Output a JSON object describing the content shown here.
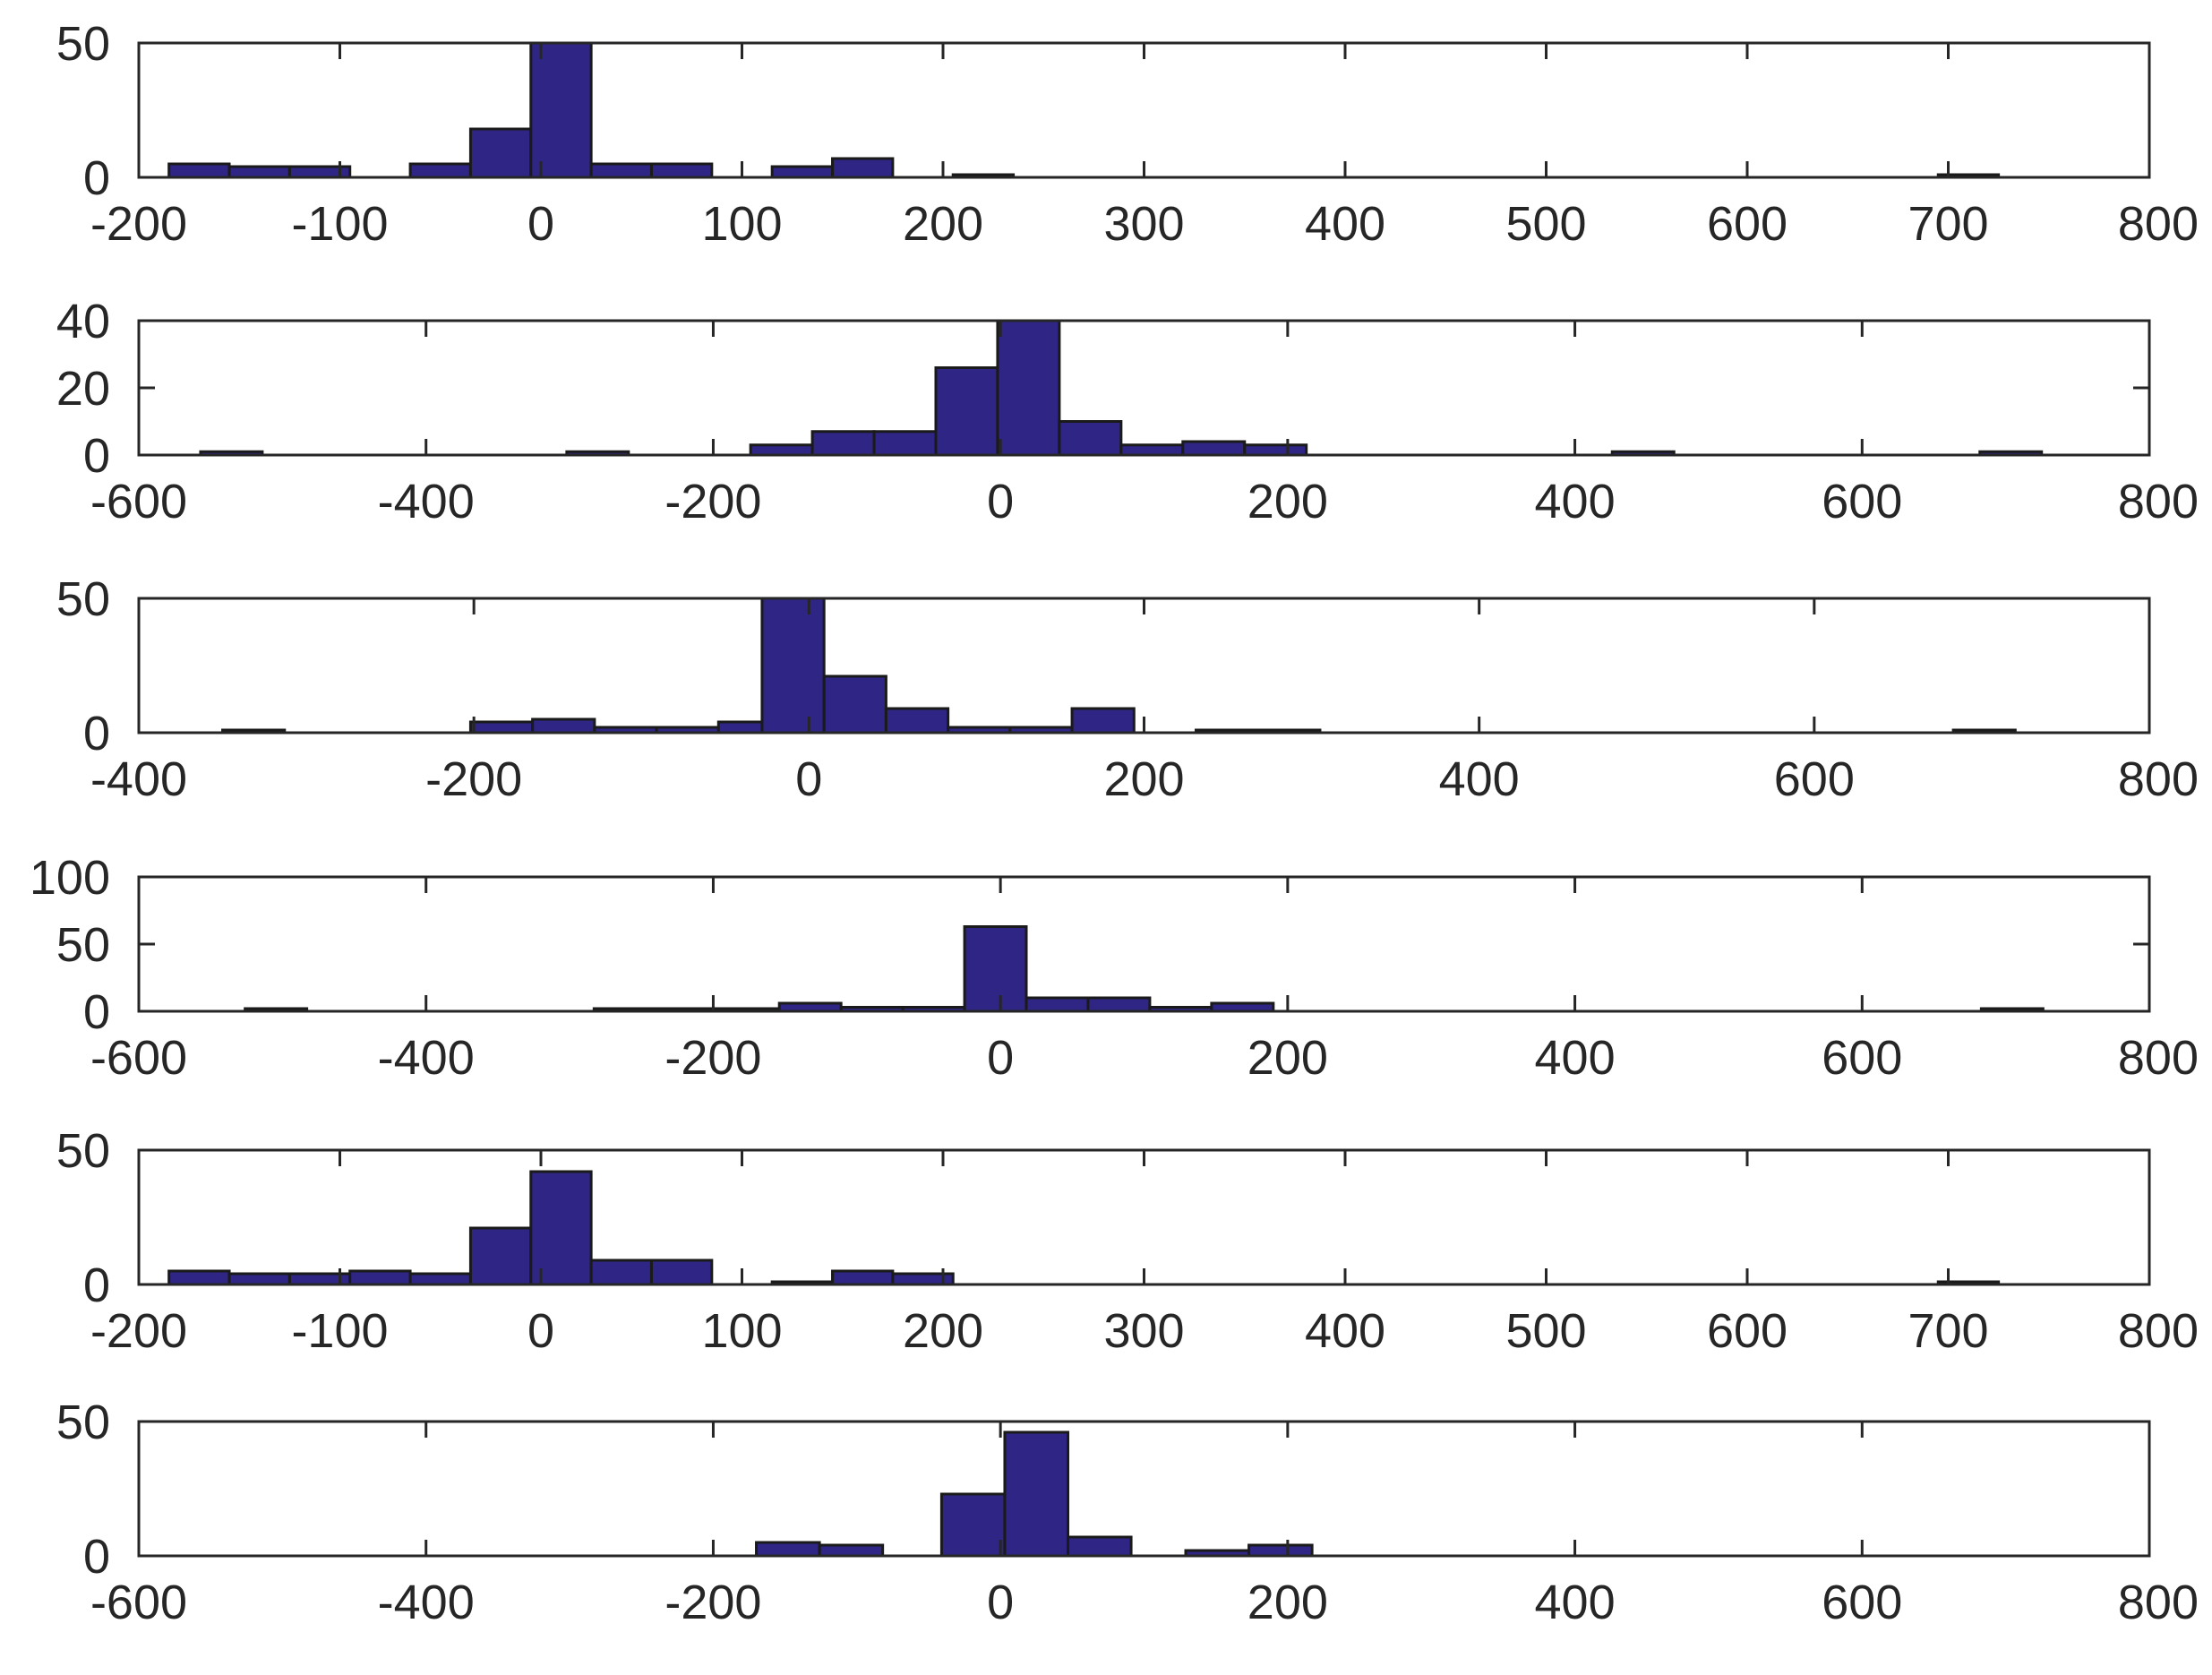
{
  "chart_data": [
    {
      "type": "bar",
      "xlim": [
        -200,
        800
      ],
      "ylim": [
        0,
        50
      ],
      "xticks": [
        -200,
        -100,
        0,
        100,
        200,
        300,
        400,
        500,
        600,
        700,
        800
      ],
      "yticks": [
        0,
        50
      ],
      "xtick_labels": [
        "-200",
        "-100",
        "0",
        "100",
        "200",
        "300",
        "400",
        "500",
        "600",
        "700",
        "800"
      ],
      "ytick_labels": [
        "0",
        "50"
      ],
      "bin_width": 30,
      "bin_starts": [
        -185,
        -155,
        -125,
        -65,
        -35,
        -5,
        25,
        55,
        115,
        145,
        205,
        695
      ],
      "counts": [
        5,
        4,
        4,
        5,
        18,
        50,
        5,
        5,
        4,
        7,
        1,
        1
      ],
      "grid": false,
      "bar_color": "#2e2585"
    },
    {
      "type": "bar",
      "xlim": [
        -600,
        800
      ],
      "ylim": [
        0,
        40
      ],
      "xticks": [
        -600,
        -400,
        -200,
        0,
        200,
        400,
        600,
        800
      ],
      "yticks": [
        0,
        20,
        40
      ],
      "xtick_labels": [
        "-600",
        "-400",
        "-200",
        "0",
        "200",
        "400",
        "600",
        "800"
      ],
      "ytick_labels": [
        "0",
        "20",
        "40"
      ],
      "bin_width": 43,
      "bin_starts": [
        -557,
        -302,
        -174,
        -131,
        -88,
        -45,
        -2,
        41,
        84,
        127,
        170,
        426,
        682
      ],
      "counts": [
        1,
        1,
        3,
        7,
        7,
        26,
        40,
        10,
        3,
        4,
        3,
        1,
        1
      ],
      "grid": false,
      "bar_color": "#2e2585"
    },
    {
      "type": "bar",
      "xlim": [
        -400,
        800
      ],
      "ylim": [
        0,
        50
      ],
      "xticks": [
        -400,
        -200,
        0,
        200,
        400,
        600,
        800
      ],
      "yticks": [
        0,
        50
      ],
      "xtick_labels": [
        "-400",
        "-200",
        "0",
        "200",
        "400",
        "600",
        "800"
      ],
      "ytick_labels": [
        "0",
        "50"
      ],
      "bin_width": 37,
      "bin_starts": [
        -350,
        -202,
        -165,
        -128,
        -91,
        -54,
        -28,
        9,
        46,
        83,
        120,
        157,
        231,
        268,
        683
      ],
      "counts": [
        1,
        4,
        5,
        2,
        2,
        4,
        50,
        21,
        9,
        2,
        2,
        9,
        1,
        1,
        1
      ],
      "grid": false,
      "bar_color": "#2e2585"
    },
    {
      "type": "bar",
      "xlim": [
        -600,
        800
      ],
      "ylim": [
        0,
        100
      ],
      "xticks": [
        -600,
        -400,
        -200,
        0,
        200,
        400,
        600,
        800
      ],
      "yticks": [
        0,
        50,
        100
      ],
      "xtick_labels": [
        "-600",
        "-400",
        "-200",
        "0",
        "200",
        "400",
        "600",
        "800"
      ],
      "ytick_labels": [
        "0",
        "50",
        "100"
      ],
      "bin_width": 43,
      "bin_starts": [
        -526,
        -283,
        -240,
        -197,
        -154,
        -111,
        -68,
        -25,
        18,
        61,
        104,
        147,
        683
      ],
      "counts": [
        2,
        2,
        2,
        2,
        6,
        3,
        3,
        63,
        10,
        10,
        3,
        6,
        2
      ],
      "grid": false,
      "bar_color": "#2e2585"
    },
    {
      "type": "bar",
      "xlim": [
        -200,
        800
      ],
      "ylim": [
        0,
        50
      ],
      "xticks": [
        -200,
        -100,
        0,
        100,
        200,
        300,
        400,
        500,
        600,
        700,
        800
      ],
      "yticks": [
        0,
        50
      ],
      "xtick_labels": [
        "-200",
        "-100",
        "0",
        "100",
        "200",
        "300",
        "400",
        "500",
        "600",
        "700",
        "800"
      ],
      "ytick_labels": [
        "0",
        "50"
      ],
      "bin_width": 30,
      "bin_starts": [
        -185,
        -155,
        -125,
        -95,
        -65,
        -35,
        -5,
        25,
        55,
        115,
        145,
        175,
        695
      ],
      "counts": [
        5,
        4,
        4,
        5,
        4,
        21,
        42,
        9,
        9,
        1,
        5,
        4,
        1
      ],
      "grid": false,
      "bar_color": "#2e2585"
    },
    {
      "type": "bar",
      "xlim": [
        -600,
        800
      ],
      "ylim": [
        0,
        50
      ],
      "xticks": [
        -600,
        -400,
        -200,
        0,
        200,
        400,
        600,
        800
      ],
      "yticks": [
        0,
        50
      ],
      "xtick_labels": [
        "-600",
        "-400",
        "-200",
        "0",
        "200",
        "400",
        "600",
        "800"
      ],
      "ytick_labels": [
        "0",
        "50"
      ],
      "bin_width": 44,
      "bin_starts": [
        -170,
        -126,
        -41,
        3,
        47,
        129,
        173
      ],
      "counts": [
        5,
        4,
        23,
        46,
        7,
        2,
        4
      ],
      "grid": false,
      "bar_color": "#2e2585"
    }
  ]
}
